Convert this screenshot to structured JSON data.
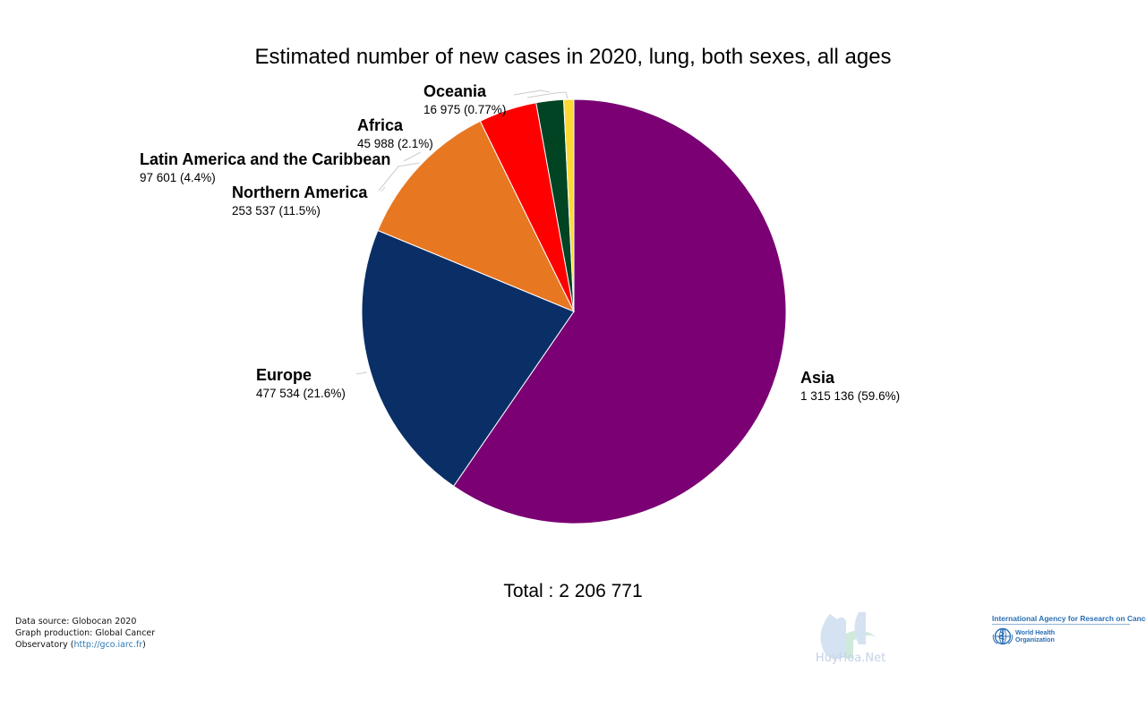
{
  "chart_data": {
    "type": "pie",
    "title": "Estimated number of new cases in 2020, lung, both sexes, all ages",
    "slices": [
      {
        "name": "Asia",
        "value": 1315136,
        "value_label": "1 315 136 (59.6%)",
        "percent": 59.6,
        "color": "#7a0073"
      },
      {
        "name": "Europe",
        "value": 477534,
        "value_label": "477 534 (21.6%)",
        "percent": 21.6,
        "color": "#0a2f67"
      },
      {
        "name": "Northern America",
        "value": 253537,
        "value_label": "253 537 (11.5%)",
        "percent": 11.5,
        "color": "#e87722"
      },
      {
        "name": "Latin America and the Caribbean",
        "value": 97601,
        "value_label": "97 601 (4.4%)",
        "percent": 4.4,
        "color": "#ff0000"
      },
      {
        "name": "Africa",
        "value": 45988,
        "value_label": "45 988 (2.1%)",
        "percent": 2.1,
        "color": "#004423"
      },
      {
        "name": "Oceania",
        "value": 16975,
        "value_label": "16 975 (0.77%)",
        "percent": 0.77,
        "color": "#fdd835"
      }
    ],
    "total_label": "Total : 2 206 771"
  },
  "footer": {
    "source_line": "Data source: Globocan 2020",
    "production_line_1": "Graph production: Global Cancer",
    "production_line_2_prefix": "Observatory (",
    "production_link": "http://gco.iarc.fr",
    "production_line_2_suffix": ")"
  },
  "watermark": {
    "text": "HuyHoa.Net"
  },
  "logos": {
    "iarc_name": "International Agency for Research on Cancer",
    "who_name_line_1": "World Health",
    "who_name_line_2": "Organization",
    "who_icon": "who-emblem-icon"
  }
}
